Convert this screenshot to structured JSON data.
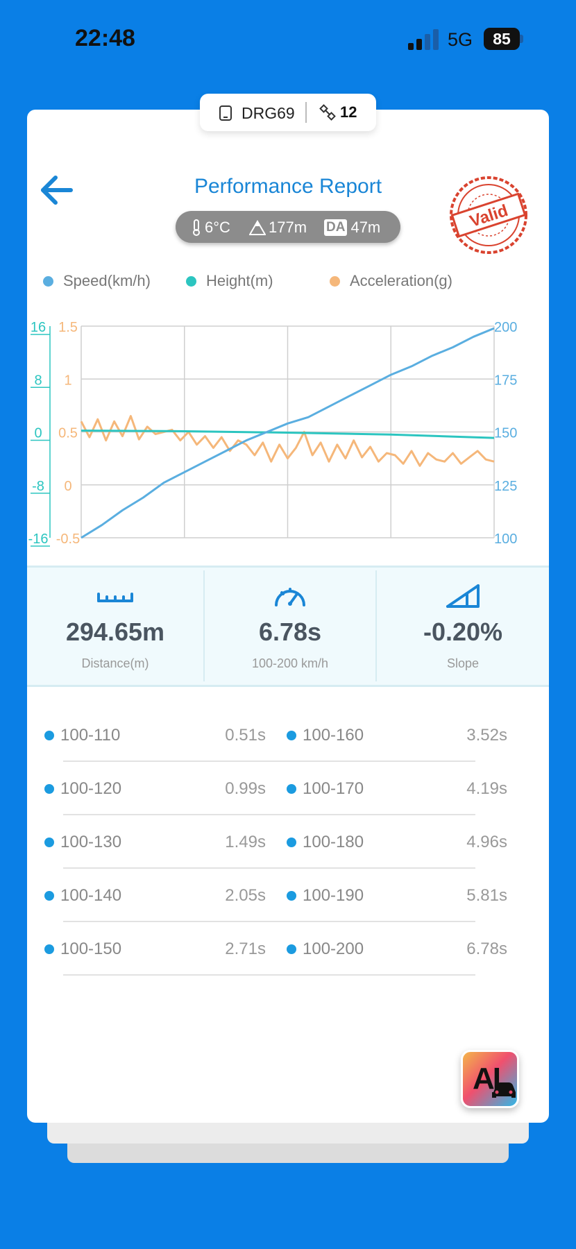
{
  "status_bar": {
    "time": "22:48",
    "network": "5G",
    "battery": "85"
  },
  "device": {
    "name": "DRG69",
    "satellites": "12"
  },
  "header": {
    "title": "Performance Report",
    "temperature": "6°C",
    "altitude": "177m",
    "density_altitude_label": "DA",
    "density_altitude": "47m",
    "stamp_text": "Valid"
  },
  "legend": [
    {
      "label": "Speed(km/h)",
      "color": "#5aaee0"
    },
    {
      "label": "Height(m)",
      "color": "#2cc5c0"
    },
    {
      "label": "Acceleration(g)",
      "color": "#f5b77a"
    }
  ],
  "chart_data": {
    "type": "line",
    "x_grid_divisions": 4,
    "y_axes": {
      "height_ticks": [
        "16",
        "8",
        "0",
        "-8",
        "-16"
      ],
      "acceleration_ticks": [
        "1.5",
        "1",
        "0.5",
        "0",
        "-0.5"
      ],
      "speed_ticks": [
        "200",
        "175",
        "150",
        "125",
        "100"
      ],
      "height_range": [
        -16,
        16
      ],
      "acceleration_range": [
        -0.5,
        1.5
      ],
      "speed_range": [
        100,
        200
      ]
    },
    "series": [
      {
        "name": "Speed(km/h)",
        "color": "#5aaee0",
        "x": [
          0,
          0.05,
          0.1,
          0.15,
          0.2,
          0.25,
          0.3,
          0.35,
          0.4,
          0.45,
          0.5,
          0.55,
          0.6,
          0.65,
          0.7,
          0.75,
          0.8,
          0.85,
          0.9,
          0.95,
          1.0
        ],
        "values": [
          100,
          106,
          113,
          119,
          126,
          131,
          136,
          141,
          146,
          150,
          154,
          157,
          162,
          167,
          172,
          177,
          181,
          186,
          190,
          195,
          199
        ]
      },
      {
        "name": "Height(m)",
        "color": "#2cc5c0",
        "x": [
          0,
          0.25,
          0.5,
          0.75,
          1.0
        ],
        "values": [
          0.2,
          0.1,
          -0.1,
          -0.4,
          -0.9
        ]
      },
      {
        "name": "Acceleration(g)",
        "color": "#f5b77a",
        "x": [
          0,
          0.02,
          0.04,
          0.06,
          0.08,
          0.1,
          0.12,
          0.14,
          0.16,
          0.18,
          0.2,
          0.22,
          0.24,
          0.26,
          0.28,
          0.3,
          0.32,
          0.34,
          0.36,
          0.38,
          0.4,
          0.42,
          0.44,
          0.46,
          0.48,
          0.5,
          0.52,
          0.54,
          0.56,
          0.58,
          0.6,
          0.62,
          0.64,
          0.66,
          0.68,
          0.7,
          0.72,
          0.74,
          0.76,
          0.78,
          0.8,
          0.82,
          0.84,
          0.86,
          0.88,
          0.9,
          0.92,
          0.94,
          0.96,
          0.98,
          1.0
        ],
        "values": [
          0.6,
          0.45,
          0.62,
          0.42,
          0.6,
          0.46,
          0.65,
          0.43,
          0.55,
          0.48,
          0.5,
          0.52,
          0.42,
          0.5,
          0.38,
          0.46,
          0.35,
          0.45,
          0.32,
          0.42,
          0.38,
          0.28,
          0.4,
          0.22,
          0.38,
          0.25,
          0.35,
          0.5,
          0.28,
          0.4,
          0.22,
          0.38,
          0.25,
          0.42,
          0.26,
          0.36,
          0.22,
          0.3,
          0.28,
          0.2,
          0.32,
          0.18,
          0.3,
          0.24,
          0.22,
          0.3,
          0.2,
          0.26,
          0.32,
          0.24,
          0.22
        ]
      }
    ]
  },
  "stats": [
    {
      "value": "294.65m",
      "label": "Distance(m)",
      "icon": "ruler-icon"
    },
    {
      "value": "6.78s",
      "label": "100-200 km/h",
      "icon": "speedometer-icon"
    },
    {
      "value": "-0.20%",
      "label": "Slope",
      "icon": "slope-icon"
    }
  ],
  "splits": [
    {
      "left_range": "100-110",
      "left_time": "0.51s",
      "right_range": "100-160",
      "right_time": "3.52s"
    },
    {
      "left_range": "100-120",
      "left_time": "0.99s",
      "right_range": "100-170",
      "right_time": "4.19s"
    },
    {
      "left_range": "100-130",
      "left_time": "1.49s",
      "right_range": "100-180",
      "right_time": "4.96s"
    },
    {
      "left_range": "100-140",
      "left_time": "2.05s",
      "right_range": "100-190",
      "right_time": "5.81s"
    },
    {
      "left_range": "100-150",
      "left_time": "2.71s",
      "right_range": "100-200",
      "right_time": "6.78s"
    }
  ],
  "ai_button": {
    "label": "AI"
  }
}
